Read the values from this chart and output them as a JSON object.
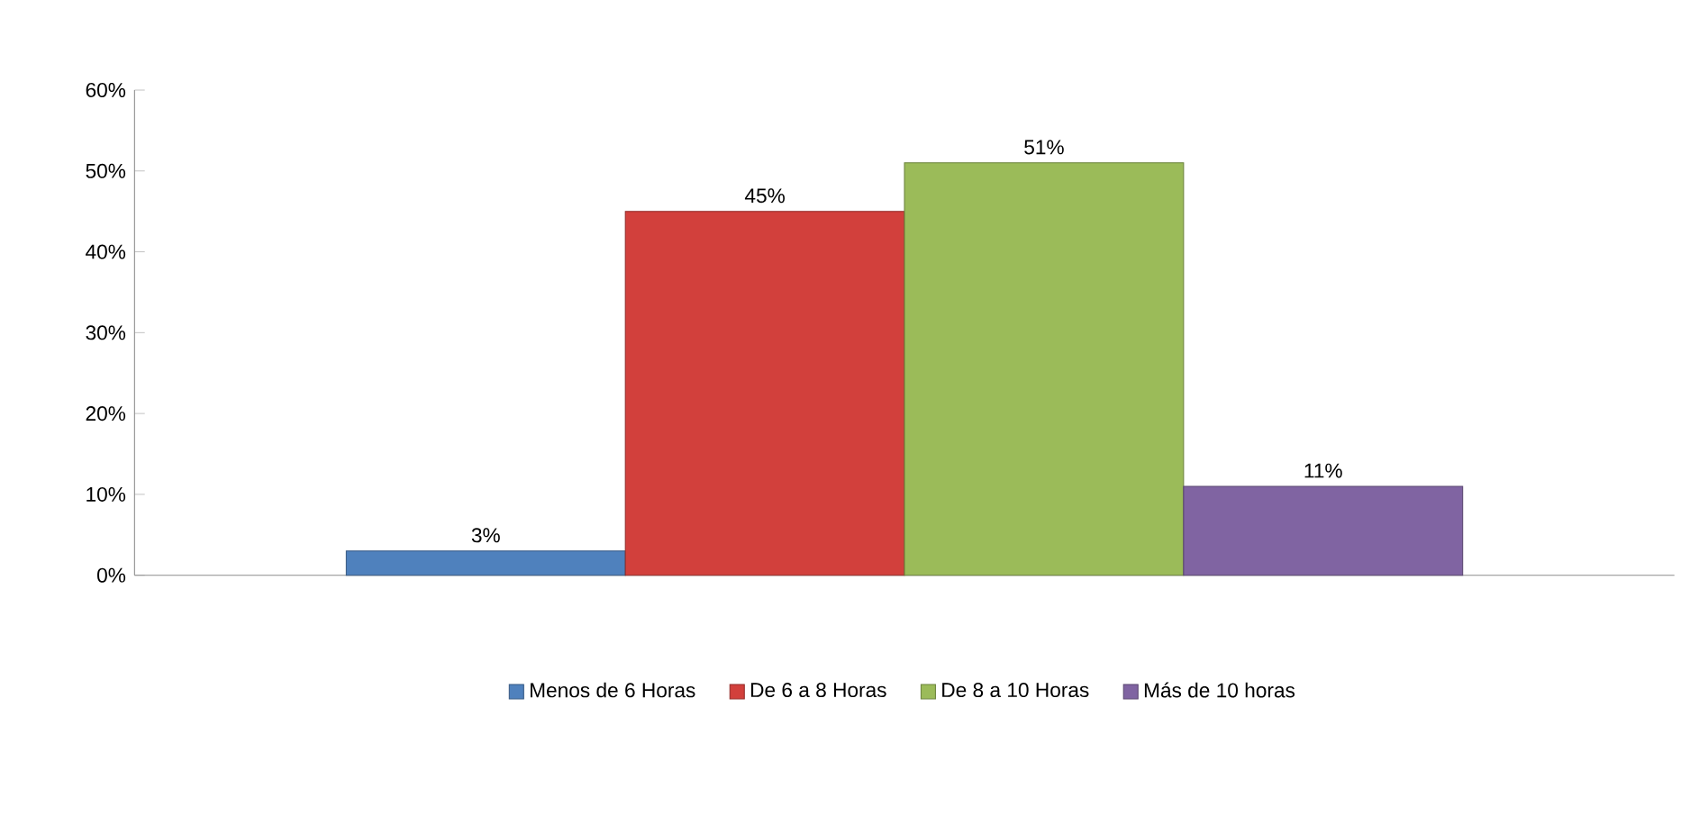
{
  "chart_data": {
    "type": "bar",
    "categories": [
      null
    ],
    "series": [
      {
        "name": "Menos de 6 Horas",
        "color": "#4f81bd",
        "values": [
          3
        ],
        "value_labels": [
          "3%"
        ]
      },
      {
        "name": "De 6 a 8 Horas",
        "color": "#d2403c",
        "values": [
          45
        ],
        "value_labels": [
          "45%"
        ]
      },
      {
        "name": "De 8 a 10 Horas",
        "color": "#9bbb59",
        "values": [
          51
        ],
        "value_labels": [
          "51%"
        ]
      },
      {
        "name": "Más de 10 horas",
        "color": "#8064a2",
        "values": [
          11
        ],
        "value_labels": [
          "11%"
        ]
      }
    ],
    "ylim": [
      0,
      60
    ],
    "yticks": [
      {
        "value": 0,
        "label": "0%"
      },
      {
        "value": 10,
        "label": "10%"
      },
      {
        "value": 20,
        "label": "20%"
      },
      {
        "value": 30,
        "label": "30%"
      },
      {
        "value": 40,
        "label": "40%"
      },
      {
        "value": 50,
        "label": "50%"
      },
      {
        "value": 60,
        "label": "60%"
      }
    ],
    "grid": false,
    "legend": "bottom"
  }
}
